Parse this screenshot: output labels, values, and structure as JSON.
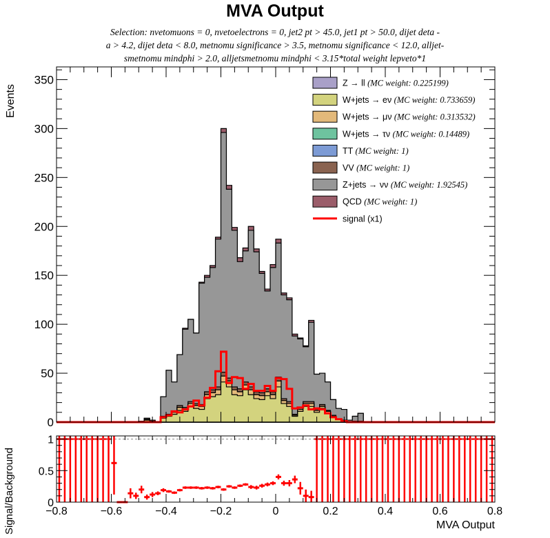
{
  "title": "MVA Output",
  "selection_lines": [
    "Selection: nvetomuons = 0, nvetoelectrons = 0, jet2 pt > 45.0, jet1 pt > 50.0, dijet deta -",
    "a > 4.2, dijet deta < 8.0, metnomu significance > 3.5, metnomu significance < 12.0, alljet-",
    "smetnomu mindphi > 2.0, alljetsmetnomu mindphi < 3.15*total weight lepveto*1"
  ],
  "colors": {
    "zll": "#a9a0c8",
    "wenu": "#d3d37e",
    "wmunu": "#e3b97a",
    "wtaunu": "#6ec39f",
    "tt": "#7d9bd5",
    "vv": "#8a6350",
    "znunu": "#979797",
    "qcd": "#9b5d6a",
    "signal": "#ff0000"
  },
  "chart_data": [
    {
      "type": "area",
      "name": "main-histogram",
      "ylabel": "Events",
      "xlim": [
        -0.8,
        0.8
      ],
      "ylim": [
        0,
        363
      ],
      "yticks": [
        0,
        50,
        100,
        150,
        200,
        250,
        300,
        350
      ],
      "bins": {
        "start": -0.8,
        "width": 0.02
      },
      "stack": [
        {
          "key": "zll",
          "label": "Z → ll",
          "weight": "(MC weight: 0.225199)",
          "values": [
            0,
            0,
            0,
            0,
            0,
            0,
            0,
            0,
            0,
            0,
            0,
            0,
            0,
            0,
            0,
            0,
            0,
            0,
            0,
            0,
            0,
            0,
            0,
            0,
            0,
            0,
            0,
            0,
            0,
            0,
            0,
            0,
            0,
            0,
            0,
            0,
            0,
            0,
            0,
            0,
            0,
            0,
            0,
            0,
            0,
            0,
            0,
            0,
            0,
            0,
            0,
            0,
            0,
            0,
            0,
            0,
            0,
            0,
            0,
            0,
            0,
            0,
            0,
            0,
            0,
            0,
            0,
            0,
            0,
            0,
            0,
            0,
            0,
            0,
            0,
            0,
            0,
            0,
            0,
            0
          ]
        },
        {
          "key": "wenu",
          "label": "W+jets → eν",
          "weight": "(MC weight: 0.733659)",
          "values": [
            0,
            0,
            0,
            0,
            0,
            0,
            0,
            0,
            0,
            0,
            0,
            0,
            0,
            0,
            0,
            1,
            2,
            1,
            0,
            4,
            6,
            8,
            12,
            11,
            16,
            14,
            13,
            24,
            26,
            28,
            41,
            36,
            28,
            27,
            33,
            28,
            24,
            23,
            27,
            24,
            36,
            19,
            16,
            6,
            11,
            16,
            16,
            10,
            14,
            9,
            5,
            3,
            2,
            0,
            1,
            1,
            0,
            0,
            0,
            0,
            0,
            0,
            0,
            0,
            0,
            0,
            0,
            0,
            0,
            0,
            0,
            0,
            0,
            0,
            0,
            0,
            0,
            0,
            0,
            0
          ]
        },
        {
          "key": "wmunu",
          "label": "W+jets → μν",
          "weight": "(MC weight: 0.313532)",
          "values": [
            0,
            0,
            0,
            0,
            0,
            0,
            0,
            0,
            0,
            0,
            0,
            0,
            0,
            0,
            0,
            0,
            0,
            0,
            0,
            1,
            1,
            2,
            3,
            2,
            3,
            3,
            3,
            4,
            4,
            5,
            6,
            6,
            5,
            4,
            5,
            5,
            4,
            4,
            4,
            4,
            6,
            3,
            3,
            1,
            2,
            3,
            3,
            2,
            2,
            2,
            1,
            0,
            0,
            0,
            0,
            0,
            0,
            0,
            0,
            0,
            0,
            0,
            0,
            0,
            0,
            0,
            0,
            0,
            0,
            0,
            0,
            0,
            0,
            0,
            0,
            0,
            0,
            0,
            0,
            0
          ]
        },
        {
          "key": "wtaunu",
          "label": "W+jets → τν",
          "weight": "(MC weight: 0.14489)",
          "values": [
            0,
            0,
            0,
            0,
            0,
            0,
            0,
            0,
            0,
            0,
            0,
            0,
            0,
            0,
            0,
            0,
            0,
            0,
            0,
            0,
            0,
            0,
            0,
            0,
            0,
            0,
            0,
            0,
            0,
            0,
            0,
            0,
            0,
            0,
            0,
            0,
            0,
            0,
            0,
            0,
            0,
            0,
            0,
            0,
            0,
            0,
            0,
            0,
            0,
            0,
            0,
            0,
            0,
            0,
            0,
            0,
            0,
            0,
            0,
            0,
            0,
            0,
            0,
            0,
            0,
            0,
            0,
            0,
            0,
            0,
            0,
            0,
            0,
            0,
            0,
            0,
            0,
            0,
            0,
            0
          ]
        },
        {
          "key": "tt",
          "label": "TT",
          "weight": "(MC weight: 1)",
          "values": [
            0,
            0,
            0,
            0,
            0,
            0,
            0,
            0,
            0,
            0,
            0,
            0,
            0,
            0,
            0,
            0,
            0,
            0,
            0,
            0,
            0,
            0,
            0,
            0,
            0,
            0,
            0,
            0,
            0,
            0,
            0,
            0,
            0,
            0,
            0,
            0,
            0,
            0,
            0,
            0,
            0,
            0,
            0,
            0,
            0,
            0,
            0,
            0,
            0,
            0,
            0,
            0,
            0,
            0,
            0,
            0,
            0,
            0,
            0,
            0,
            0,
            0,
            0,
            0,
            0,
            0,
            0,
            0,
            0,
            0,
            0,
            0,
            0,
            0,
            0,
            0,
            0,
            0,
            0,
            0
          ]
        },
        {
          "key": "vv",
          "label": "VV",
          "weight": "(MC weight: 1)",
          "values": [
            0,
            0,
            0,
            0,
            0,
            0,
            0,
            0,
            0,
            0,
            0,
            0,
            0,
            0,
            0,
            0,
            1,
            0,
            0,
            1,
            1,
            1,
            2,
            2,
            2,
            2,
            2,
            3,
            3,
            3,
            4,
            3,
            3,
            3,
            3,
            3,
            3,
            3,
            3,
            3,
            4,
            2,
            2,
            1,
            2,
            2,
            2,
            2,
            2,
            1,
            1,
            0,
            0,
            0,
            0,
            0,
            0,
            0,
            0,
            0,
            0,
            0,
            0,
            0,
            0,
            0,
            0,
            0,
            0,
            0,
            0,
            0,
            0,
            0,
            0,
            0,
            0,
            0,
            0,
            0
          ]
        },
        {
          "key": "znunu",
          "label": "Z+jets → νν",
          "weight": "(MC weight: 1.92545)",
          "values": [
            0,
            0,
            0,
            0,
            0,
            0,
            0,
            0,
            0,
            0,
            0,
            0,
            0,
            0,
            0,
            0,
            1,
            1,
            0,
            20,
            45,
            30,
            52,
            80,
            84,
            72,
            124,
            117,
            125,
            151,
            245,
            193,
            160,
            130,
            134,
            160,
            143,
            122,
            100,
            127,
            137,
            106,
            104,
            80,
            70,
            56,
            81,
            35,
            32,
            29,
            16,
            11,
            11,
            2,
            5,
            8,
            0,
            0,
            0,
            0,
            0,
            0,
            0,
            0,
            0,
            0,
            0,
            0,
            0,
            0,
            0,
            0,
            0,
            0,
            0,
            0,
            0,
            0,
            0,
            0
          ]
        },
        {
          "key": "qcd",
          "label": "QCD",
          "weight": "(MC weight: 1)",
          "values": [
            0,
            0,
            0,
            0,
            0,
            0,
            0,
            0,
            0,
            0,
            0,
            0,
            0,
            0,
            0,
            0,
            0,
            0,
            0,
            0,
            0,
            0,
            0,
            1,
            0,
            0,
            1,
            2,
            2,
            2,
            4,
            4,
            3,
            4,
            3,
            4,
            3,
            2,
            2,
            3,
            4,
            2,
            2,
            2,
            1,
            1,
            2,
            0,
            0,
            0,
            0,
            0,
            0,
            0,
            0,
            0,
            0,
            0,
            0,
            0,
            0,
            0,
            0,
            0,
            0,
            0,
            0,
            0,
            0,
            0,
            0,
            0,
            0,
            0,
            0,
            0,
            0,
            0,
            0,
            0
          ]
        }
      ],
      "signal": {
        "label": "signal (x1)",
        "values": [
          0,
          0,
          0,
          0,
          0,
          0,
          0,
          0,
          0,
          0,
          0,
          0,
          0,
          0,
          0,
          0,
          0,
          0,
          0,
          5,
          7,
          11,
          10,
          13,
          16,
          22,
          17,
          25,
          35,
          52,
          72,
          40,
          46,
          45,
          34,
          39,
          32,
          32,
          37,
          32,
          45,
          44,
          34,
          14,
          15,
          17,
          13,
          14,
          13,
          9,
          5,
          3,
          1,
          0,
          0,
          0,
          0,
          0,
          0,
          0,
          0,
          0,
          0,
          0,
          0,
          0,
          0,
          0,
          0,
          0,
          0,
          0,
          0,
          0,
          0,
          0,
          0,
          0,
          0,
          0
        ]
      }
    },
    {
      "type": "scatter",
      "name": "ratio-panel",
      "ylabel": "Signal/Background",
      "xlabel": "MVA Output",
      "xlim": [
        -0.8,
        0.8
      ],
      "ylim": [
        0,
        1.05
      ],
      "yticks": [
        0,
        0.5,
        1
      ],
      "xticks": [
        -0.8,
        -0.6,
        -0.4,
        -0.2,
        0,
        0.2,
        0.4,
        0.6,
        0.8
      ],
      "reference_line": 1,
      "full_range_bins": [
        [
          -0.8,
          -0.6
        ],
        [
          0.14,
          0.8
        ]
      ],
      "points": [
        [
          -0.59,
          0.62,
          0.5
        ],
        [
          -0.57,
          0.0,
          0.0
        ],
        [
          -0.55,
          0.0,
          0.0
        ],
        [
          -0.53,
          0.14,
          0.08
        ],
        [
          -0.51,
          0.1,
          0.05
        ],
        [
          -0.49,
          0.2,
          0.06
        ],
        [
          -0.47,
          0.08,
          0.04
        ],
        [
          -0.45,
          0.12,
          0.04
        ],
        [
          -0.43,
          0.14,
          0.03
        ],
        [
          -0.41,
          0.19,
          0.03
        ],
        [
          -0.39,
          0.17,
          0.02
        ],
        [
          -0.37,
          0.15,
          0.02
        ],
        [
          -0.35,
          0.19,
          0.02
        ],
        [
          -0.33,
          0.23,
          0.02
        ],
        [
          -0.31,
          0.23,
          0.02
        ],
        [
          -0.29,
          0.23,
          0.02
        ],
        [
          -0.27,
          0.22,
          0.02
        ],
        [
          -0.25,
          0.23,
          0.02
        ],
        [
          -0.23,
          0.22,
          0.02
        ],
        [
          -0.21,
          0.24,
          0.02
        ],
        [
          -0.19,
          0.2,
          0.02
        ],
        [
          -0.17,
          0.25,
          0.02
        ],
        [
          -0.15,
          0.23,
          0.02
        ],
        [
          -0.13,
          0.26,
          0.02
        ],
        [
          -0.11,
          0.28,
          0.02
        ],
        [
          -0.09,
          0.24,
          0.03
        ],
        [
          -0.07,
          0.23,
          0.03
        ],
        [
          -0.05,
          0.26,
          0.03
        ],
        [
          -0.03,
          0.28,
          0.03
        ],
        [
          -0.01,
          0.3,
          0.03
        ],
        [
          0.01,
          0.4,
          0.04
        ],
        [
          0.03,
          0.3,
          0.04
        ],
        [
          0.05,
          0.3,
          0.05
        ],
        [
          0.07,
          0.36,
          0.06
        ],
        [
          0.09,
          0.22,
          0.1
        ],
        [
          0.11,
          0.1,
          0.1
        ],
        [
          0.13,
          0.08,
          0.1
        ]
      ]
    }
  ]
}
